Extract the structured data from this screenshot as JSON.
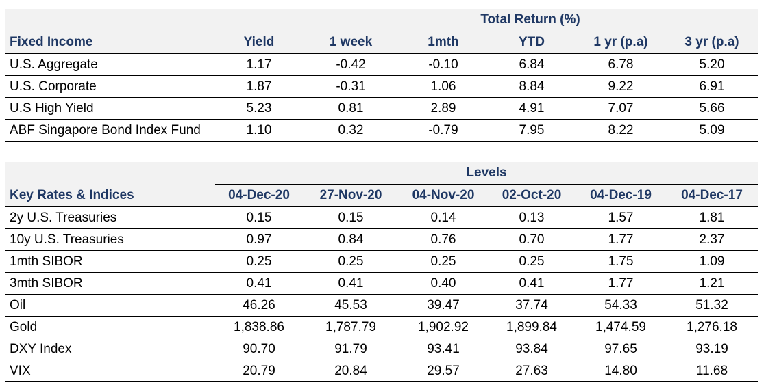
{
  "fixed_income": {
    "group_title": "Total Return (%)",
    "headers": [
      "Fixed Income",
      "Yield",
      "1 week",
      "1mth",
      "YTD",
      "1 yr (p.a)",
      "3 yr (p.a)"
    ],
    "rows": [
      [
        "U.S. Aggregate",
        "1.17",
        "-0.42",
        "-0.10",
        "6.84",
        "6.78",
        "5.20"
      ],
      [
        "U.S. Corporate",
        "1.87",
        "-0.31",
        "1.06",
        "8.84",
        "9.22",
        "6.91"
      ],
      [
        "U.S High Yield",
        "5.23",
        "0.81",
        "2.89",
        "4.91",
        "7.07",
        "5.66"
      ],
      [
        "ABF Singapore Bond Index Fund",
        "1.10",
        "0.32",
        "-0.79",
        "7.95",
        "8.22",
        "5.09"
      ]
    ]
  },
  "key_rates": {
    "group_title": "Levels",
    "headers": [
      "Key Rates & Indices",
      "04-Dec-20",
      "27-Nov-20",
      "04-Nov-20",
      "02-Oct-20",
      "04-Dec-19",
      "04-Dec-17"
    ],
    "rows": [
      [
        "2y U.S. Treasuries",
        "0.15",
        "0.15",
        "0.14",
        "0.13",
        "1.57",
        "1.81"
      ],
      [
        "10y U.S. Treasuries",
        "0.97",
        "0.84",
        "0.76",
        "0.70",
        "1.77",
        "2.37"
      ],
      [
        "1mth SIBOR",
        "0.25",
        "0.25",
        "0.25",
        "0.25",
        "1.75",
        "1.09"
      ],
      [
        "3mth SIBOR",
        "0.41",
        "0.41",
        "0.40",
        "0.41",
        "1.77",
        "1.21"
      ],
      [
        "Oil",
        "46.26",
        "45.53",
        "39.47",
        "37.74",
        "54.33",
        "51.32"
      ],
      [
        "Gold",
        "1,838.86",
        "1,787.79",
        "1,902.92",
        "1,899.84",
        "1,474.59",
        "1,276.18"
      ],
      [
        "DXY Index",
        "90.70",
        "91.79",
        "93.41",
        "93.84",
        "97.65",
        "93.19"
      ],
      [
        "VIX",
        "20.79",
        "20.84",
        "29.57",
        "27.63",
        "14.80",
        "11.68"
      ]
    ]
  }
}
